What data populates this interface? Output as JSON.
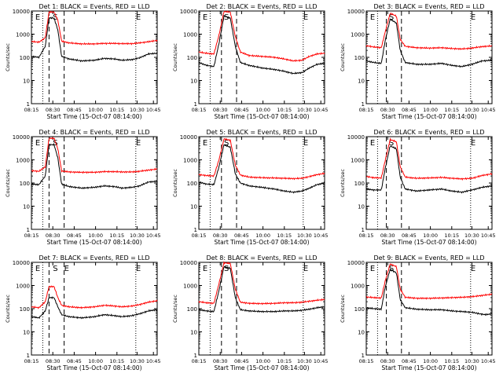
{
  "chart_data": {
    "type": "line",
    "x_label": "Start Time (15-Oct-07 08:14:00)",
    "y_label": "Counts/sec",
    "x_ticks": [
      "08:15",
      "08:30",
      "08:45",
      "10:00",
      "10:15",
      "10:30",
      "10:45"
    ],
    "y_ticks": [
      "1",
      "10",
      "100",
      "1000",
      "10000"
    ],
    "y_log": true,
    "ylim": [
      1,
      10000
    ],
    "series_colors": {
      "Events": "#000000",
      "LLD": "#ff0000"
    },
    "panels": [
      {
        "title": "Det 1: BLACK = Events, RED = LLD",
        "markers": [
          "E",
          "S",
          "E"
        ],
        "events": [
          [
            0,
            110
          ],
          [
            0.06,
            100
          ],
          [
            0.11,
            300
          ],
          [
            0.14,
            5000
          ],
          [
            0.18,
            5000
          ],
          [
            0.21,
            1500
          ],
          [
            0.24,
            110
          ],
          [
            0.3,
            85
          ],
          [
            0.4,
            70
          ],
          [
            0.5,
            75
          ],
          [
            0.58,
            90
          ],
          [
            0.66,
            85
          ],
          [
            0.72,
            75
          ],
          [
            0.8,
            80
          ],
          [
            0.86,
            95
          ],
          [
            0.93,
            140
          ],
          [
            1,
            150
          ]
        ],
        "lld": [
          [
            0,
            480
          ],
          [
            0.06,
            450
          ],
          [
            0.11,
            700
          ],
          [
            0.14,
            9000
          ],
          [
            0.18,
            9000
          ],
          [
            0.21,
            4000
          ],
          [
            0.24,
            500
          ],
          [
            0.3,
            420
          ],
          [
            0.4,
            380
          ],
          [
            0.5,
            380
          ],
          [
            0.58,
            400
          ],
          [
            0.66,
            400
          ],
          [
            0.72,
            390
          ],
          [
            0.8,
            390
          ],
          [
            0.86,
            420
          ],
          [
            0.93,
            470
          ],
          [
            1,
            540
          ]
        ]
      },
      {
        "title": "Det 2: BLACK = Events, RED = LLD",
        "markers": [
          "E",
          "S",
          "E"
        ],
        "events": [
          [
            0,
            60
          ],
          [
            0.06,
            45
          ],
          [
            0.12,
            40
          ],
          [
            0.16,
            400
          ],
          [
            0.2,
            6000
          ],
          [
            0.25,
            5000
          ],
          [
            0.29,
            300
          ],
          [
            0.33,
            60
          ],
          [
            0.4,
            45
          ],
          [
            0.5,
            35
          ],
          [
            0.6,
            30
          ],
          [
            0.68,
            25
          ],
          [
            0.75,
            20
          ],
          [
            0.82,
            22
          ],
          [
            0.88,
            35
          ],
          [
            0.94,
            50
          ],
          [
            1,
            55
          ]
        ],
        "lld": [
          [
            0,
            170
          ],
          [
            0.06,
            150
          ],
          [
            0.12,
            140
          ],
          [
            0.16,
            900
          ],
          [
            0.2,
            9500
          ],
          [
            0.25,
            9000
          ],
          [
            0.29,
            800
          ],
          [
            0.33,
            170
          ],
          [
            0.4,
            120
          ],
          [
            0.5,
            110
          ],
          [
            0.6,
            100
          ],
          [
            0.68,
            85
          ],
          [
            0.75,
            70
          ],
          [
            0.82,
            75
          ],
          [
            0.88,
            110
          ],
          [
            0.94,
            140
          ],
          [
            1,
            150
          ]
        ]
      },
      {
        "title": "Det 3: BLACK = Events, RED = LLD",
        "markers": [
          "E",
          "S",
          "E"
        ],
        "events": [
          [
            0,
            70
          ],
          [
            0.06,
            60
          ],
          [
            0.12,
            55
          ],
          [
            0.15,
            500
          ],
          [
            0.19,
            4500
          ],
          [
            0.24,
            3000
          ],
          [
            0.27,
            200
          ],
          [
            0.31,
            60
          ],
          [
            0.4,
            50
          ],
          [
            0.5,
            50
          ],
          [
            0.6,
            55
          ],
          [
            0.68,
            45
          ],
          [
            0.76,
            40
          ],
          [
            0.84,
            50
          ],
          [
            0.92,
            70
          ],
          [
            1,
            75
          ]
        ],
        "lld": [
          [
            0,
            320
          ],
          [
            0.06,
            280
          ],
          [
            0.12,
            260
          ],
          [
            0.15,
            1200
          ],
          [
            0.19,
            8000
          ],
          [
            0.24,
            6000
          ],
          [
            0.27,
            600
          ],
          [
            0.31,
            300
          ],
          [
            0.4,
            260
          ],
          [
            0.5,
            250
          ],
          [
            0.6,
            260
          ],
          [
            0.68,
            240
          ],
          [
            0.76,
            230
          ],
          [
            0.84,
            250
          ],
          [
            0.92,
            290
          ],
          [
            1,
            310
          ]
        ]
      },
      {
        "title": "Det 4: BLACK = Events, RED = LLD",
        "markers": [
          "E",
          "S",
          "E"
        ],
        "events": [
          [
            0,
            90
          ],
          [
            0.06,
            85
          ],
          [
            0.11,
            200
          ],
          [
            0.14,
            4500
          ],
          [
            0.18,
            4500
          ],
          [
            0.21,
            1200
          ],
          [
            0.24,
            90
          ],
          [
            0.3,
            70
          ],
          [
            0.4,
            60
          ],
          [
            0.5,
            65
          ],
          [
            0.58,
            75
          ],
          [
            0.66,
            70
          ],
          [
            0.72,
            60
          ],
          [
            0.8,
            65
          ],
          [
            0.86,
            75
          ],
          [
            0.93,
            110
          ],
          [
            1,
            120
          ]
        ],
        "lld": [
          [
            0,
            340
          ],
          [
            0.06,
            320
          ],
          [
            0.11,
            500
          ],
          [
            0.14,
            8500
          ],
          [
            0.18,
            8500
          ],
          [
            0.21,
            3000
          ],
          [
            0.24,
            330
          ],
          [
            0.3,
            300
          ],
          [
            0.4,
            290
          ],
          [
            0.5,
            290
          ],
          [
            0.58,
            310
          ],
          [
            0.66,
            310
          ],
          [
            0.72,
            300
          ],
          [
            0.8,
            300
          ],
          [
            0.86,
            320
          ],
          [
            0.93,
            360
          ],
          [
            1,
            400
          ]
        ]
      },
      {
        "title": "Det 5: BLACK = Events, RED = LLD",
        "markers": [
          "E",
          "S",
          "E"
        ],
        "events": [
          [
            0,
            110
          ],
          [
            0.06,
            90
          ],
          [
            0.12,
            85
          ],
          [
            0.16,
            500
          ],
          [
            0.2,
            4500
          ],
          [
            0.25,
            3500
          ],
          [
            0.29,
            250
          ],
          [
            0.33,
            100
          ],
          [
            0.4,
            75
          ],
          [
            0.5,
            65
          ],
          [
            0.6,
            55
          ],
          [
            0.68,
            45
          ],
          [
            0.75,
            40
          ],
          [
            0.82,
            45
          ],
          [
            0.88,
            60
          ],
          [
            0.94,
            85
          ],
          [
            1,
            100
          ]
        ],
        "lld": [
          [
            0,
            230
          ],
          [
            0.06,
            210
          ],
          [
            0.12,
            200
          ],
          [
            0.16,
            1000
          ],
          [
            0.2,
            8000
          ],
          [
            0.25,
            7000
          ],
          [
            0.29,
            600
          ],
          [
            0.33,
            220
          ],
          [
            0.4,
            180
          ],
          [
            0.5,
            170
          ],
          [
            0.6,
            165
          ],
          [
            0.68,
            160
          ],
          [
            0.75,
            155
          ],
          [
            0.82,
            160
          ],
          [
            0.88,
            190
          ],
          [
            0.94,
            230
          ],
          [
            1,
            260
          ]
        ]
      },
      {
        "title": "Det 6: BLACK = Events, RED = LLD",
        "markers": [
          "E",
          "S",
          "E"
        ],
        "events": [
          [
            0,
            55
          ],
          [
            0.06,
            50
          ],
          [
            0.12,
            50
          ],
          [
            0.15,
            400
          ],
          [
            0.19,
            4000
          ],
          [
            0.24,
            3000
          ],
          [
            0.27,
            180
          ],
          [
            0.31,
            55
          ],
          [
            0.4,
            45
          ],
          [
            0.5,
            50
          ],
          [
            0.6,
            55
          ],
          [
            0.68,
            45
          ],
          [
            0.76,
            40
          ],
          [
            0.84,
            50
          ],
          [
            0.92,
            65
          ],
          [
            1,
            75
          ]
        ],
        "lld": [
          [
            0,
            190
          ],
          [
            0.06,
            170
          ],
          [
            0.12,
            165
          ],
          [
            0.15,
            900
          ],
          [
            0.19,
            7500
          ],
          [
            0.24,
            6000
          ],
          [
            0.27,
            500
          ],
          [
            0.31,
            180
          ],
          [
            0.4,
            160
          ],
          [
            0.5,
            165
          ],
          [
            0.6,
            175
          ],
          [
            0.68,
            160
          ],
          [
            0.76,
            150
          ],
          [
            0.84,
            160
          ],
          [
            0.92,
            210
          ],
          [
            1,
            250
          ]
        ]
      },
      {
        "title": "Det 7: BLACK = Events, RED = LLD",
        "markers": [
          "E",
          "S",
          "E",
          "E"
        ],
        "events": [
          [
            0,
            45
          ],
          [
            0.06,
            40
          ],
          [
            0.11,
            80
          ],
          [
            0.14,
            300
          ],
          [
            0.18,
            300
          ],
          [
            0.21,
            120
          ],
          [
            0.24,
            55
          ],
          [
            0.3,
            45
          ],
          [
            0.4,
            40
          ],
          [
            0.5,
            45
          ],
          [
            0.58,
            55
          ],
          [
            0.66,
            50
          ],
          [
            0.72,
            45
          ],
          [
            0.8,
            50
          ],
          [
            0.86,
            60
          ],
          [
            0.93,
            80
          ],
          [
            1,
            90
          ]
        ],
        "lld": [
          [
            0,
            120
          ],
          [
            0.06,
            110
          ],
          [
            0.11,
            200
          ],
          [
            0.14,
            900
          ],
          [
            0.18,
            900
          ],
          [
            0.21,
            300
          ],
          [
            0.24,
            140
          ],
          [
            0.3,
            120
          ],
          [
            0.4,
            110
          ],
          [
            0.5,
            120
          ],
          [
            0.58,
            140
          ],
          [
            0.66,
            130
          ],
          [
            0.72,
            120
          ],
          [
            0.8,
            130
          ],
          [
            0.86,
            150
          ],
          [
            0.93,
            190
          ],
          [
            1,
            220
          ]
        ]
      },
      {
        "title": "Det 8: BLACK = Events, RED = LLD",
        "markers": [
          "E",
          "S",
          "E"
        ],
        "events": [
          [
            0,
            90
          ],
          [
            0.06,
            80
          ],
          [
            0.12,
            75
          ],
          [
            0.16,
            600
          ],
          [
            0.2,
            6500
          ],
          [
            0.25,
            5500
          ],
          [
            0.29,
            300
          ],
          [
            0.33,
            90
          ],
          [
            0.4,
            80
          ],
          [
            0.5,
            75
          ],
          [
            0.6,
            75
          ],
          [
            0.68,
            80
          ],
          [
            0.75,
            80
          ],
          [
            0.82,
            85
          ],
          [
            0.88,
            95
          ],
          [
            0.94,
            110
          ],
          [
            1,
            120
          ]
        ],
        "lld": [
          [
            0,
            200
          ],
          [
            0.06,
            180
          ],
          [
            0.12,
            170
          ],
          [
            0.16,
            1200
          ],
          [
            0.2,
            9500
          ],
          [
            0.25,
            9000
          ],
          [
            0.29,
            700
          ],
          [
            0.33,
            190
          ],
          [
            0.4,
            170
          ],
          [
            0.5,
            165
          ],
          [
            0.6,
            170
          ],
          [
            0.68,
            180
          ],
          [
            0.75,
            180
          ],
          [
            0.82,
            190
          ],
          [
            0.88,
            210
          ],
          [
            0.94,
            230
          ],
          [
            1,
            250
          ]
        ]
      },
      {
        "title": "Det 9: BLACK = Events, RED = LLD",
        "markers": [
          "E",
          "S",
          "E"
        ],
        "events": [
          [
            0,
            110
          ],
          [
            0.06,
            100
          ],
          [
            0.12,
            95
          ],
          [
            0.15,
            800
          ],
          [
            0.19,
            5000
          ],
          [
            0.24,
            3500
          ],
          [
            0.27,
            250
          ],
          [
            0.31,
            110
          ],
          [
            0.4,
            95
          ],
          [
            0.5,
            90
          ],
          [
            0.6,
            90
          ],
          [
            0.68,
            80
          ],
          [
            0.76,
            75
          ],
          [
            0.84,
            70
          ],
          [
            0.9,
            60
          ],
          [
            0.95,
            55
          ],
          [
            1,
            60
          ]
        ],
        "lld": [
          [
            0,
            320
          ],
          [
            0.06,
            300
          ],
          [
            0.12,
            290
          ],
          [
            0.15,
            1500
          ],
          [
            0.19,
            8500
          ],
          [
            0.24,
            6500
          ],
          [
            0.27,
            700
          ],
          [
            0.31,
            310
          ],
          [
            0.4,
            280
          ],
          [
            0.5,
            280
          ],
          [
            0.6,
            290
          ],
          [
            0.68,
            300
          ],
          [
            0.76,
            310
          ],
          [
            0.84,
            330
          ],
          [
            0.9,
            360
          ],
          [
            0.95,
            390
          ],
          [
            1,
            420
          ]
        ]
      }
    ]
  }
}
